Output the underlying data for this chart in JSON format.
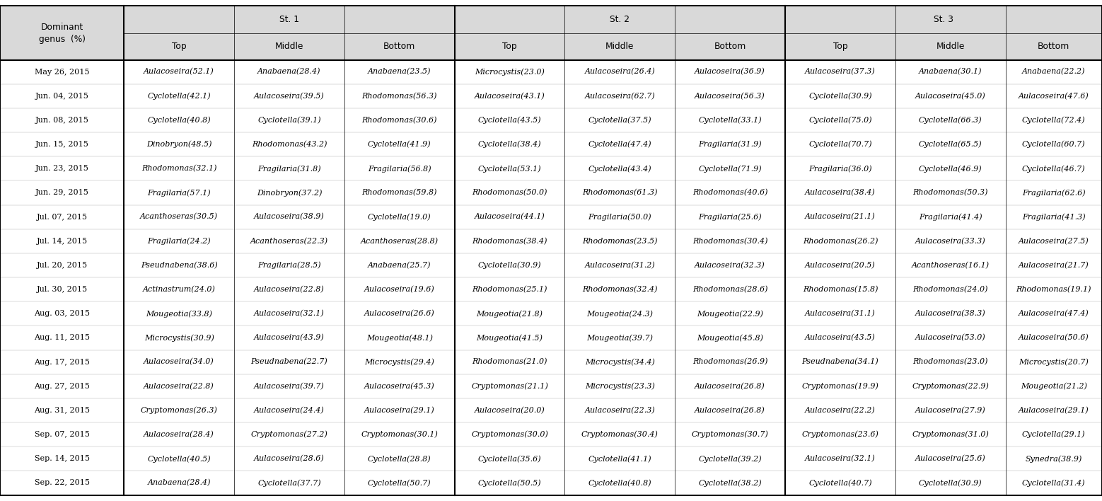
{
  "col_headers_row1": [
    "Dominant\ngenus  (%)",
    "St. 1",
    "",
    "",
    "St. 2",
    "",
    "",
    "St. 3",
    "",
    ""
  ],
  "col_headers_row2": [
    "",
    "Top",
    "Middle",
    "Bottom",
    "Top",
    "Middle",
    "Bottom",
    "Top",
    "Middle",
    "Bottom"
  ],
  "rows": [
    [
      "May 26, 2015",
      "Aulacoseira(52.1)",
      "Anabaena(28.4)",
      "Anabaena(23.5)",
      "Microcystis(23.0)",
      "Aulacoseira(26.4)",
      "Aulacoseira(36.9)",
      "Aulacoseira(37.3)",
      "Anabaena(30.1)",
      "Anabaena(22.2)"
    ],
    [
      "Jun. 04, 2015",
      "Cyclotella(42.1)",
      "Aulacoseira(39.5)",
      "Rhodomonas(56.3)",
      "Aulacoseira(43.1)",
      "Aulacoseira(62.7)",
      "Aulacoseira(56.3)",
      "Cyclotella(30.9)",
      "Aulacoseira(45.0)",
      "Aulacoseira(47.6)"
    ],
    [
      "Jun. 08, 2015",
      "Cyclotella(40.8)",
      "Cyclotella(39.1)",
      "Rhodomonas(30.6)",
      "Cyclotella(43.5)",
      "Cyclotella(37.5)",
      "Cyclotella(33.1)",
      "Cyclotella(75.0)",
      "Cyclotella(66.3)",
      "Cyclotella(72.4)"
    ],
    [
      "Jun. 15, 2015",
      "Dinobryon(48.5)",
      "Rhodomonas(43.2)",
      "Cyclotella(41.9)",
      "Cyclotella(38.4)",
      "Cyclotella(47.4)",
      "Fragilaria(31.9)",
      "Cyclotella(70.7)",
      "Cyclotella(65.5)",
      "Cyclotella(60.7)"
    ],
    [
      "Jun. 23, 2015",
      "Rhodomonas(32.1)",
      "Fragilaria(31.8)",
      "Fragilaria(56.8)",
      "Cyclotella(53.1)",
      "Cyclotella(43.4)",
      "Cyclotella(71.9)",
      "Fragilaria(36.0)",
      "Cyclotella(46.9)",
      "Cyclotella(46.7)"
    ],
    [
      "Jun. 29, 2015",
      "Fragilaria(57.1)",
      "Dinobryon(37.2)",
      "Rhodomonas(59.8)",
      "Rhodomonas(50.0)",
      "Rhodomonas(61.3)",
      "Rhodomonas(40.6)",
      "Aulacoseira(38.4)",
      "Rhodomonas(50.3)",
      "Fragilaria(62.6)"
    ],
    [
      "Jul. 07, 2015",
      "Acanthoseras(30.5)",
      "Aulacoseira(38.9)",
      "Cyclotella(19.0)",
      "Aulacoseira(44.1)",
      "Fragilaria(50.0)",
      "Fragilaria(25.6)",
      "Aulacoseira(21.1)",
      "Fragilaria(41.4)",
      "Fragilaria(41.3)"
    ],
    [
      "Jul. 14, 2015",
      "Fragilaria(24.2)",
      "Acanthoseras(22.3)",
      "Acanthoseras(28.8)",
      "Rhodomonas(38.4)",
      "Rhodomonas(23.5)",
      "Rhodomonas(30.4)",
      "Rhodomonas(26.2)",
      "Aulacoseira(33.3)",
      "Aulacoseira(27.5)"
    ],
    [
      "Jul. 20, 2015",
      "Pseudnabena(38.6)",
      "Fragilaria(28.5)",
      "Anabaena(25.7)",
      "Cyclotella(30.9)",
      "Aulacoseira(31.2)",
      "Aulacoseira(32.3)",
      "Aulacoseira(20.5)",
      "Acanthoseras(16.1)",
      "Aulacoseira(21.7)"
    ],
    [
      "Jul. 30, 2015",
      "Actinastrum(24.0)",
      "Aulacoseira(22.8)",
      "Aulacoseira(19.6)",
      "Rhodomonas(25.1)",
      "Rhodomonas(32.4)",
      "Rhodomonas(28.6)",
      "Rhodomonas(15.8)",
      "Rhodomonas(24.0)",
      "Rhodomonas(19.1)"
    ],
    [
      "Aug. 03, 2015",
      "Mougeotia(33.8)",
      "Aulacoseira(32.1)",
      "Aulacoseira(26.6)",
      "Mougeotia(21.8)",
      "Mougeotia(24.3)",
      "Mougeotia(22.9)",
      "Aulacoseira(31.1)",
      "Aulacoseira(38.3)",
      "Aulacoseira(47.4)"
    ],
    [
      "Aug. 11, 2015",
      "Microcystis(30.9)",
      "Aulacoseira(43.9)",
      "Mougeotia(48.1)",
      "Mougeotia(41.5)",
      "Mougeotia(39.7)",
      "Mougeotia(45.8)",
      "Aulacoseira(43.5)",
      "Aulacoseira(53.0)",
      "Aulacoseira(50.6)"
    ],
    [
      "Aug. 17, 2015",
      "Aulacoseira(34.0)",
      "Pseudnabena(22.7)",
      "Microcystis(29.4)",
      "Rhodomonas(21.0)",
      "Microcystis(34.4)",
      "Rhodomonas(26.9)",
      "Pseudnabena(34.1)",
      "Rhodomonas(23.0)",
      "Microcystis(20.7)"
    ],
    [
      "Aug. 27, 2015",
      "Aulacoseira(22.8)",
      "Aulacoseira(39.7)",
      "Aulacoseira(45.3)",
      "Cryptomonas(21.1)",
      "Microcystis(23.3)",
      "Aulacoseira(26.8)",
      "Cryptomonas(19.9)",
      "Cryptomonas(22.9)",
      "Mougeotia(21.2)"
    ],
    [
      "Aug. 31, 2015",
      "Cryptomonas(26.3)",
      "Aulacoseira(24.4)",
      "Aulacoseira(29.1)",
      "Aulacoseira(20.0)",
      "Aulacoseira(22.3)",
      "Aulacoseira(26.8)",
      "Aulacoseira(22.2)",
      "Aulacoseira(27.9)",
      "Aulacoseira(29.1)"
    ],
    [
      "Sep. 07, 2015",
      "Aulacoseira(28.4)",
      "Cryptomonas(27.2)",
      "Cryptomonas(30.1)",
      "Cryptomonas(30.0)",
      "Cryptomonas(30.4)",
      "Cryptomonas(30.7)",
      "Cryptomonas(23.6)",
      "Cryptomonas(31.0)",
      "Cyclotella(29.1)"
    ],
    [
      "Sep. 14, 2015",
      "Cyclotella(40.5)",
      "Aulacoseira(28.6)",
      "Cyclotella(28.8)",
      "Cyclotella(35.6)",
      "Cyclotella(41.1)",
      "Cyclotella(39.2)",
      "Aulacoseira(32.1)",
      "Aulacoseira(25.6)",
      "Synedra(38.9)"
    ],
    [
      "Sep. 22, 2015",
      "Anabaena(28.4)",
      "Cyclotella(37.7)",
      "Cyclotella(50.7)",
      "Cyclotella(50.5)",
      "Cyclotella(40.8)",
      "Cyclotella(38.2)",
      "Cyclotella(40.7)",
      "Cyclotella(30.9)",
      "Cyclotella(31.4)"
    ]
  ],
  "header_bg": "#d9d9d9",
  "border_color": "#000000",
  "header_fontsize": 8.8,
  "cell_fontsize": 8.0,
  "figsize": [
    15.58,
    7.08
  ],
  "dpi": 100
}
